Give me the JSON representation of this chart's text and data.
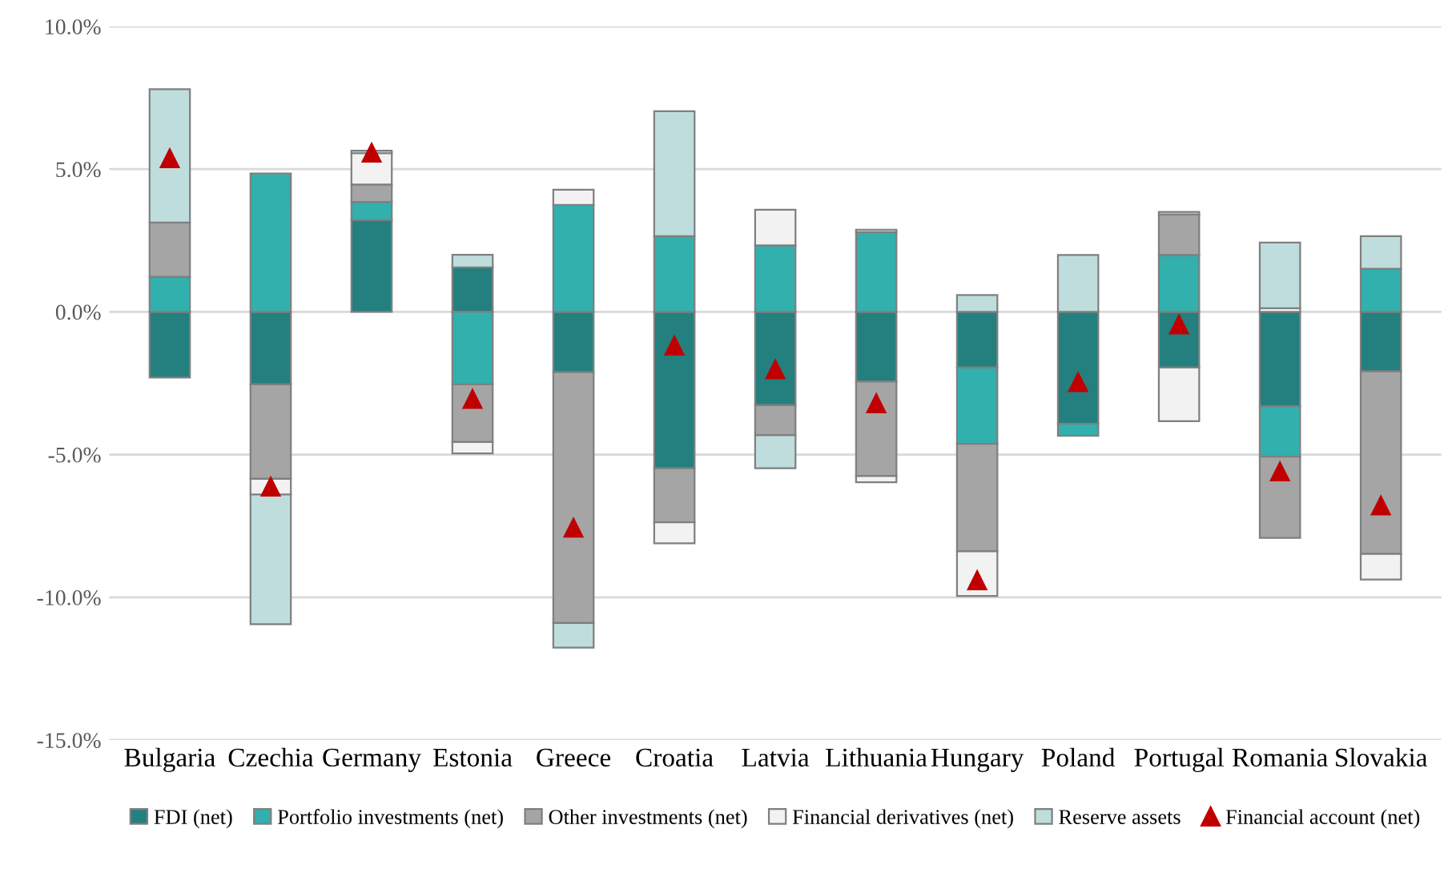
{
  "chart_data": {
    "type": "bar",
    "stacked": true,
    "categories": [
      "Bulgaria",
      "Czechia",
      "Germany",
      "Estonia",
      "Greece",
      "Croatia",
      "Latvia",
      "Lithuania",
      "Hungary",
      "Poland",
      "Portugal",
      "Romania",
      "Slovakia"
    ],
    "series": [
      {
        "name": "FDI (net)",
        "color": "#23807e",
        "values": [
          -2.3,
          -2.54,
          3.22,
          1.56,
          -2.11,
          -5.48,
          -3.27,
          -2.44,
          -1.95,
          -3.92,
          -1.95,
          -3.31,
          -2.08
        ]
      },
      {
        "name": "Portfolio investments (net)",
        "color": "#31b0ae",
        "values": [
          1.23,
          4.85,
          0.63,
          -2.54,
          3.75,
          2.65,
          2.33,
          2.79,
          -2.67,
          -0.42,
          1.99,
          -1.76,
          1.51
        ]
      },
      {
        "name": "Other investments (net)",
        "color": "#a5a5a5",
        "values": [
          1.9,
          -3.31,
          0.61,
          -2.02,
          -8.79,
          -1.89,
          -1.05,
          -3.31,
          -3.77,
          null,
          1.42,
          -2.85,
          -6.4
        ]
      },
      {
        "name": "Financial derivatives (net)",
        "color": "#f2f2f2",
        "values": [
          null,
          -0.55,
          1.1,
          -0.4,
          0.53,
          -0.74,
          1.25,
          -0.22,
          -1.56,
          null,
          -1.88,
          0.13,
          -0.9
        ]
      },
      {
        "name": "Reserve assets",
        "color": "#bfdddd",
        "values": [
          4.67,
          -4.54,
          0.09,
          0.44,
          -0.86,
          4.38,
          -1.16,
          0.09,
          0.59,
          1.99,
          0.09,
          2.3,
          1.14
        ]
      },
      {
        "name": "Financial account (net)",
        "type": "scatter",
        "marker": "triangle",
        "color": "#c00000",
        "values": [
          5.4,
          -6.1,
          5.6,
          -3.03,
          -7.54,
          -1.16,
          -1.99,
          -3.18,
          -9.38,
          -2.44,
          -0.42,
          -5.57,
          -6.76
        ]
      }
    ],
    "ylim": [
      -15,
      10
    ],
    "yticks": [
      {
        "value": -15,
        "label": "-15.0%"
      },
      {
        "value": -10,
        "label": "-10.0%"
      },
      {
        "value": -5,
        "label": "-5.0%"
      },
      {
        "value": 0,
        "label": "0.0%"
      },
      {
        "value": 5,
        "label": "5.0%"
      },
      {
        "value": 10,
        "label": "10.0%"
      }
    ],
    "grid": "y",
    "legend": "bottom"
  }
}
